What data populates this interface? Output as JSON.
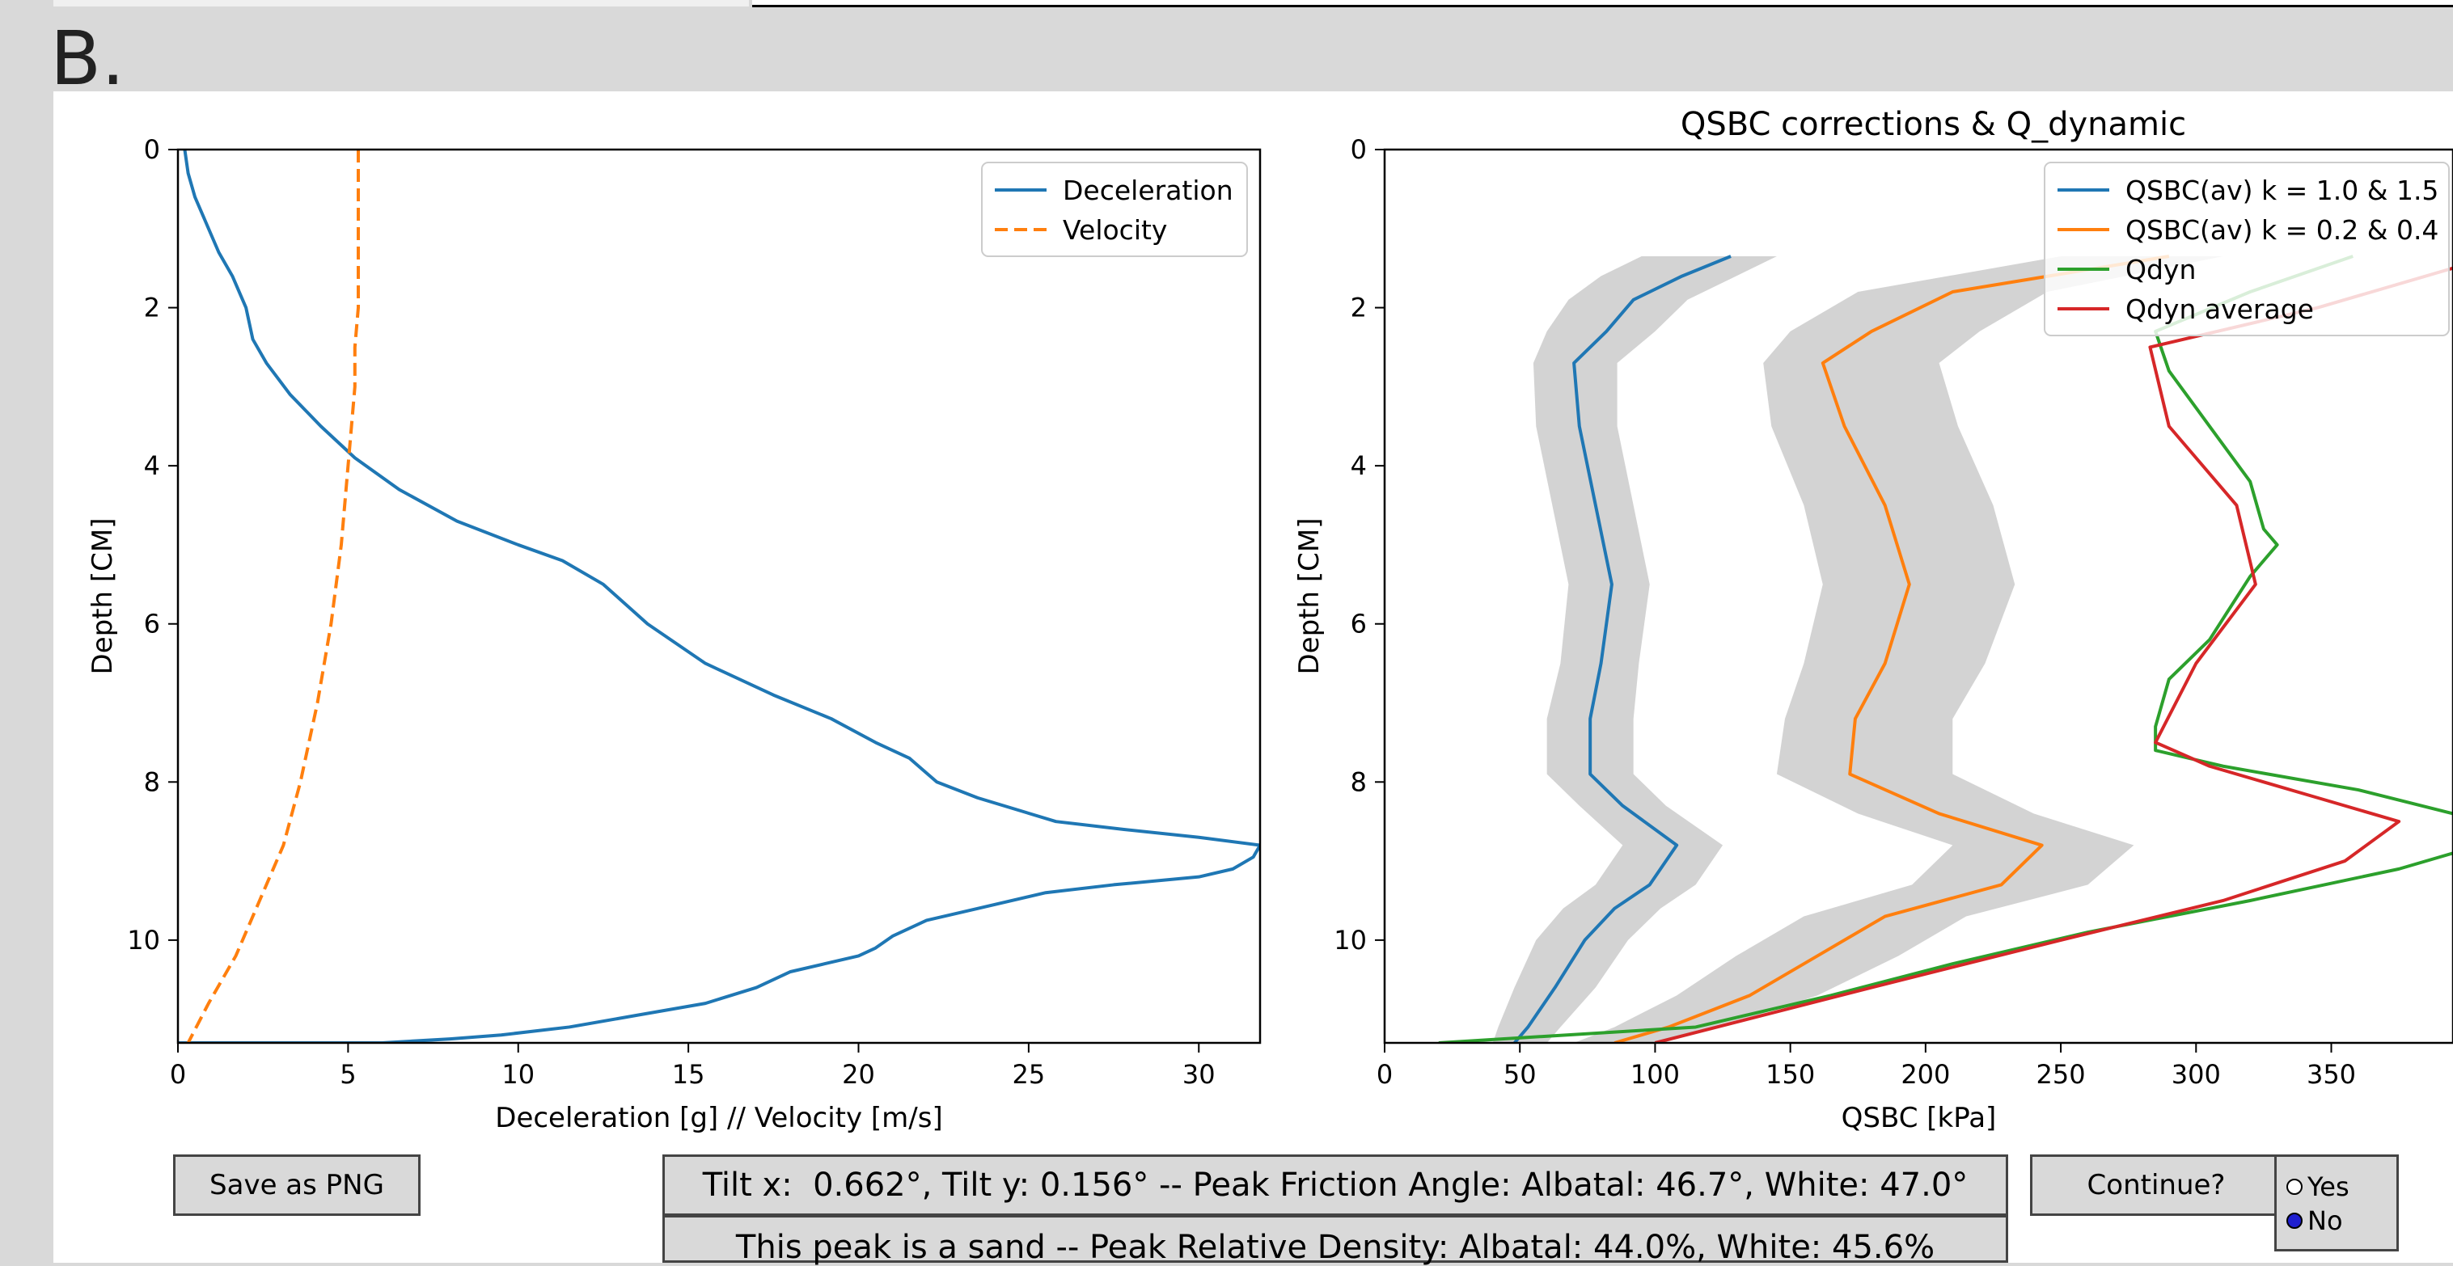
{
  "section_label": "B.",
  "buttons": {
    "save_png": "Save as PNG",
    "continue": "Continue?"
  },
  "info": {
    "line1": "Tilt x:  0.662°, Tilt y: 0.156° -- Peak Friction Angle: Albatal: 46.7°, White: 47.0°",
    "line2": "This peak is a sand -- Peak Relative Density: Albatal: 44.0%, White: 45.6%"
  },
  "continue_radio": {
    "options": [
      "Yes",
      "No"
    ],
    "selected": "No"
  },
  "chart_data": [
    {
      "type": "line",
      "title": "",
      "xlabel": "Deceleration [g] // Velocity [m/s]",
      "ylabel": "Depth [CM]",
      "xlim": [
        0,
        31.8
      ],
      "ylim": [
        11.3,
        0
      ],
      "xticks": [
        0,
        5,
        10,
        15,
        20,
        25,
        30
      ],
      "yticks": [
        0,
        2,
        4,
        6,
        8,
        10
      ],
      "legend_position": "top-right",
      "series": [
        {
          "name": "Deceleration",
          "color": "#1f77b4",
          "style": "solid",
          "x": [
            0.2,
            0.3,
            0.5,
            0.8,
            1.2,
            1.6,
            2.0,
            2.2,
            2.6,
            3.3,
            4.2,
            5.2,
            6.5,
            8.2,
            10.0,
            11.3,
            12.5,
            13.8,
            15.5,
            17.5,
            19.2,
            20.5,
            21.5,
            22.3,
            23.5,
            25.8,
            27.8,
            30.0,
            31.8,
            31.6,
            31.0,
            30.0,
            27.5,
            25.5,
            23.5,
            22.0,
            21.0,
            20.5,
            20.0,
            19.0,
            18.0,
            17.0,
            15.5,
            13.5,
            11.5,
            9.5,
            8.0,
            6.0,
            3.0,
            0.0
          ],
          "y": [
            0.0,
            0.3,
            0.6,
            0.9,
            1.3,
            1.6,
            2.0,
            2.4,
            2.7,
            3.1,
            3.5,
            3.9,
            4.3,
            4.7,
            5.0,
            5.2,
            5.5,
            6.0,
            6.5,
            6.9,
            7.2,
            7.5,
            7.7,
            8.0,
            8.2,
            8.5,
            8.6,
            8.7,
            8.8,
            8.95,
            9.1,
            9.2,
            9.3,
            9.4,
            9.6,
            9.75,
            9.95,
            10.1,
            10.2,
            10.3,
            10.4,
            10.6,
            10.8,
            10.95,
            11.1,
            11.2,
            11.25,
            11.3,
            11.3,
            11.3
          ]
        },
        {
          "name": "Velocity",
          "color": "#ff7f0e",
          "style": "dashed",
          "x": [
            5.3,
            5.3,
            5.3,
            5.3,
            5.3,
            5.2,
            5.2,
            5.1,
            5.0,
            4.8,
            4.5,
            4.1,
            3.6,
            3.1,
            2.4,
            1.7,
            0.9,
            0.3
          ],
          "y": [
            0.0,
            0.5,
            1.0,
            1.5,
            2.0,
            2.5,
            3.0,
            3.5,
            4.0,
            5.0,
            6.0,
            7.0,
            8.0,
            8.8,
            9.5,
            10.2,
            10.8,
            11.3
          ]
        }
      ]
    },
    {
      "type": "line",
      "title": "QSBC corrections & Q_dynamic",
      "xlabel": "QSBC [kPa]",
      "ylabel": "Depth [CM]",
      "xlim": [
        0,
        395
      ],
      "ylim": [
        11.3,
        0
      ],
      "xticks": [
        0,
        50,
        100,
        150,
        200,
        250,
        300,
        350
      ],
      "yticks": [
        0,
        2,
        4,
        6,
        8,
        10
      ],
      "legend_position": "top-right",
      "series": [
        {
          "name": "QSBC(av) k = 1.0 & 1.5",
          "color": "#1f77b4",
          "band_color": "#d3d3d3",
          "y": [
            1.35,
            1.6,
            1.9,
            2.3,
            2.7,
            3.5,
            4.5,
            5.5,
            6.5,
            7.2,
            7.9,
            8.3,
            8.8,
            9.3,
            9.6,
            10.0,
            10.6,
            11.1,
            11.3
          ],
          "x": [
            128,
            110,
            92,
            82,
            70,
            72,
            78,
            84,
            80,
            76,
            76,
            88,
            108,
            98,
            85,
            74,
            63,
            53,
            48
          ],
          "band_low": [
            95,
            80,
            68,
            60,
            55,
            56,
            62,
            68,
            65,
            60,
            60,
            72,
            88,
            78,
            66,
            56,
            48,
            42,
            40
          ],
          "band_high": [
            145,
            130,
            112,
            100,
            86,
            86,
            92,
            98,
            94,
            92,
            92,
            104,
            125,
            115,
            102,
            90,
            78,
            65,
            60
          ]
        },
        {
          "name": "QSBC(av) k = 0.2 & 0.4",
          "color": "#ff7f0e",
          "band_color": "#d3d3d3",
          "y": [
            1.35,
            1.8,
            2.3,
            2.7,
            3.5,
            4.5,
            5.5,
            6.5,
            7.2,
            7.9,
            8.4,
            8.8,
            9.3,
            9.7,
            10.2,
            10.7,
            11.1,
            11.3
          ],
          "x": [
            290,
            210,
            180,
            162,
            170,
            185,
            194,
            185,
            174,
            172,
            205,
            243,
            228,
            185,
            160,
            135,
            105,
            85
          ],
          "band_low": [
            250,
            175,
            150,
            140,
            143,
            155,
            162,
            155,
            148,
            145,
            175,
            210,
            195,
            155,
            130,
            108,
            85,
            70
          ],
          "band_high": [
            310,
            245,
            220,
            205,
            212,
            225,
            233,
            222,
            210,
            210,
            240,
            277,
            260,
            215,
            190,
            160,
            125,
            100
          ]
        },
        {
          "name": "Qdyn",
          "color": "#2ca02c",
          "y": [
            1.35,
            1.8,
            2.3,
            2.8,
            3.5,
            4.2,
            4.8,
            5.0,
            5.4,
            6.2,
            6.7,
            7.3,
            7.6,
            7.8,
            8.1,
            8.4,
            8.8,
            9.1,
            9.5,
            9.9,
            10.3,
            10.7,
            11.1,
            11.3
          ],
          "x": [
            358,
            320,
            285,
            290,
            305,
            320,
            325,
            330,
            320,
            305,
            290,
            285,
            285,
            310,
            360,
            395,
            405,
            375,
            320,
            260,
            210,
            165,
            115,
            20
          ]
        },
        {
          "name": "Qdyn average",
          "color": "#d62728",
          "y": [
            1.5,
            2.0,
            2.5,
            3.5,
            4.5,
            5.5,
            6.5,
            7.5,
            7.8,
            8.2,
            8.5,
            9.0,
            9.5,
            10.0,
            10.6,
            11.3
          ],
          "x": [
            395,
            345,
            283,
            290,
            315,
            322,
            300,
            285,
            305,
            345,
            375,
            355,
            310,
            250,
            180,
            100
          ]
        }
      ]
    }
  ]
}
